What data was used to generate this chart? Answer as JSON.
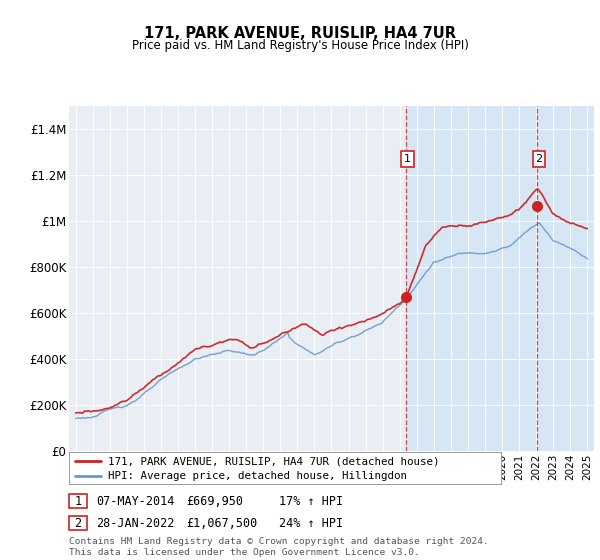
{
  "title": "171, PARK AVENUE, RUISLIP, HA4 7UR",
  "subtitle": "Price paid vs. HM Land Registry's House Price Index (HPI)",
  "legend_line1": "171, PARK AVENUE, RUISLIP, HA4 7UR (detached house)",
  "legend_line2": "HPI: Average price, detached house, Hillingdon",
  "transaction1_date": "07-MAY-2014",
  "transaction1_price": "£669,950",
  "transaction1_hpi": "17% ↑ HPI",
  "transaction2_date": "28-JAN-2022",
  "transaction2_price": "£1,067,500",
  "transaction2_hpi": "24% ↑ HPI",
  "footer": "Contains HM Land Registry data © Crown copyright and database right 2024.\nThis data is licensed under the Open Government Licence v3.0.",
  "ylim": [
    0,
    1500000
  ],
  "yticks": [
    0,
    200000,
    400000,
    600000,
    800000,
    1000000,
    1200000,
    1400000
  ],
  "ytick_labels": [
    "£0",
    "£200K",
    "£400K",
    "£600K",
    "£800K",
    "£1M",
    "£1.2M",
    "£1.4M"
  ],
  "red_color": "#cc2222",
  "blue_color": "#6699cc",
  "highlight_color": "#ddeeff",
  "transaction1_year": 2014.35,
  "transaction1_value": 669950,
  "transaction2_year": 2022.07,
  "transaction2_value": 1067500,
  "vline1_year": 2014.35,
  "vline2_year": 2022.07,
  "plot_bg": "#e8eef4",
  "highlight_bg": "#d0e4f4"
}
